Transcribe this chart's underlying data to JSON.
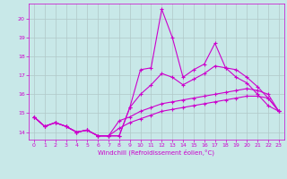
{
  "title": "",
  "xlabel": "Windchill (Refroidissement éolien,°C)",
  "ylabel": "",
  "background_color": "#c8e8e8",
  "grid_color": "#b0c8c8",
  "line_color": "#cc00cc",
  "x_values": [
    0,
    1,
    2,
    3,
    4,
    5,
    6,
    7,
    8,
    9,
    10,
    11,
    12,
    13,
    14,
    15,
    16,
    17,
    18,
    19,
    20,
    21,
    22,
    23
  ],
  "line1": [
    14.8,
    14.3,
    14.5,
    14.3,
    14.0,
    14.1,
    13.8,
    13.8,
    13.8,
    15.3,
    17.3,
    17.4,
    20.5,
    19.0,
    16.9,
    17.3,
    17.6,
    18.7,
    17.4,
    17.3,
    16.9,
    16.4,
    15.8,
    15.1
  ],
  "line2": [
    14.8,
    14.3,
    14.5,
    14.3,
    14.0,
    14.1,
    13.8,
    13.8,
    13.8,
    15.3,
    16.0,
    16.5,
    17.1,
    16.9,
    16.5,
    16.8,
    17.1,
    17.5,
    17.4,
    16.9,
    16.6,
    16.0,
    15.4,
    15.1
  ],
  "line3": [
    14.8,
    14.3,
    14.5,
    14.3,
    14.0,
    14.1,
    13.8,
    13.8,
    14.6,
    14.8,
    15.1,
    15.3,
    15.5,
    15.6,
    15.7,
    15.8,
    15.9,
    16.0,
    16.1,
    16.2,
    16.3,
    16.2,
    16.0,
    15.1
  ],
  "line4": [
    14.8,
    14.3,
    14.5,
    14.3,
    14.0,
    14.1,
    13.8,
    13.8,
    14.2,
    14.5,
    14.7,
    14.9,
    15.1,
    15.2,
    15.3,
    15.4,
    15.5,
    15.6,
    15.7,
    15.8,
    15.9,
    15.9,
    15.8,
    15.1
  ],
  "ylim": [
    13.6,
    20.8
  ],
  "xlim": [
    -0.5,
    23.5
  ],
  "yticks": [
    14,
    15,
    16,
    17,
    18,
    19,
    20
  ],
  "xticks": [
    0,
    1,
    2,
    3,
    4,
    5,
    6,
    7,
    8,
    9,
    10,
    11,
    12,
    13,
    14,
    15,
    16,
    17,
    18,
    19,
    20,
    21,
    22,
    23
  ],
  "marker": "+",
  "markersize": 3,
  "linewidth": 0.8,
  "tick_fontsize": 4.5,
  "xlabel_fontsize": 5.0
}
